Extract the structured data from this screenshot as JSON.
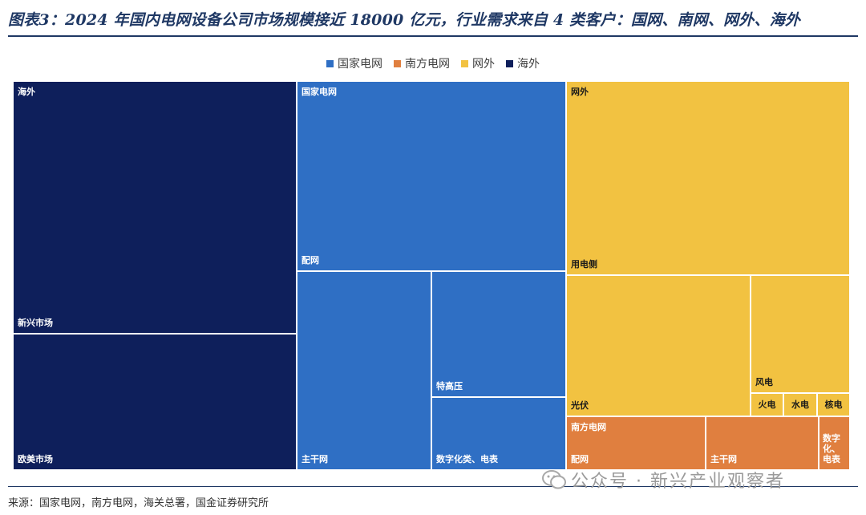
{
  "title": "图表3：2024 年国内电网设备公司市场规模接近 18000 亿元，行业需求来自 4 类客户：国网、南网、网外、海外",
  "source": "来源：国家电网，南方电网，海关总署，国金证券研究所",
  "watermark": "公众号 · 新兴产业观察者",
  "colors": {
    "guo": "#2f6fc4",
    "nan": "#e07f3f",
    "wai": "#f2c241",
    "hai": "#0e1f5b"
  },
  "chart_data": {
    "type": "treemap",
    "title": "",
    "legend": [
      "国家电网",
      "南方电网",
      "网外",
      "海外"
    ],
    "legend_position": "top-center",
    "groups": [
      {
        "name": "海外",
        "color": "#0e1f5b",
        "children": [
          {
            "name": "新兴市场"
          },
          {
            "name": "欧美市场"
          }
        ]
      },
      {
        "name": "国家电网",
        "color": "#2f6fc4",
        "children": [
          {
            "name": "配网"
          },
          {
            "name": "主干网"
          },
          {
            "name": "特高压"
          },
          {
            "name": "数字化类、电表"
          }
        ]
      },
      {
        "name": "网外",
        "color": "#f2c241",
        "children": [
          {
            "name": "用电侧"
          },
          {
            "name": "光伏"
          },
          {
            "name": "风电"
          },
          {
            "name": "火电"
          },
          {
            "name": "水电"
          },
          {
            "name": "核电"
          }
        ]
      },
      {
        "name": "南方电网",
        "color": "#e07f3f",
        "children": [
          {
            "name": "配网"
          },
          {
            "name": "主干网"
          },
          {
            "name": "数字化、电表"
          }
        ]
      }
    ]
  }
}
